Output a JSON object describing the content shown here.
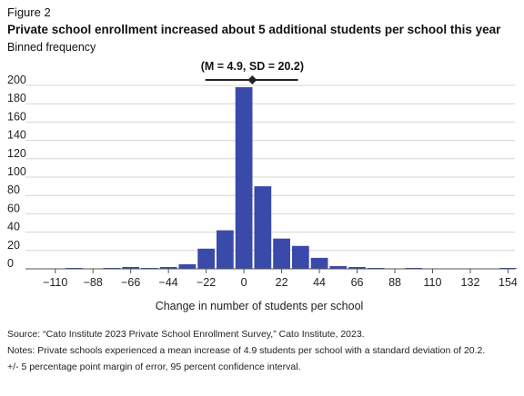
{
  "figure_label": "Figure 2",
  "title": "Private school enrollment increased about 5 additional students per school this year",
  "subtitle": "Binned frequency",
  "chart_data": {
    "type": "bar",
    "ylim": [
      0,
      200
    ],
    "yticks": [
      0,
      20,
      40,
      60,
      80,
      100,
      120,
      140,
      160,
      180,
      200
    ],
    "xlim": [
      -121,
      158
    ],
    "xticks": [
      -110,
      -88,
      -66,
      -44,
      -22,
      0,
      22,
      44,
      66,
      88,
      110,
      132,
      154
    ],
    "xtick_labels": [
      "−110",
      "−88",
      "−66",
      "−44",
      "−22",
      "0",
      "22",
      "44",
      "66",
      "88",
      "110",
      "132",
      "154"
    ],
    "bin_width": 11,
    "bins": [
      {
        "x": -99,
        "value": 1
      },
      {
        "x": -77,
        "value": 1
      },
      {
        "x": -66,
        "value": 2
      },
      {
        "x": -55,
        "value": 1
      },
      {
        "x": -44,
        "value": 2
      },
      {
        "x": -33,
        "value": 5
      },
      {
        "x": -22,
        "value": 22
      },
      {
        "x": -11,
        "value": 42
      },
      {
        "x": 0,
        "value": 198
      },
      {
        "x": 11,
        "value": 90
      },
      {
        "x": 22,
        "value": 33
      },
      {
        "x": 33,
        "value": 25
      },
      {
        "x": 44,
        "value": 12
      },
      {
        "x": 55,
        "value": 3
      },
      {
        "x": 66,
        "value": 2
      },
      {
        "x": 77,
        "value": 1
      },
      {
        "x": 99,
        "value": 1
      },
      {
        "x": 154,
        "value": 1
      }
    ],
    "xlabel": "Change in number of students per school",
    "ylabel": "",
    "grid": true,
    "annotation": {
      "label": "(M = 4.9, SD = 20.2)",
      "mean": 4.9,
      "interval": [
        -22.5,
        31.5
      ]
    },
    "colors": {
      "bar": "#3a4aaa",
      "grid": "#d4d4d4",
      "axis": "#555555",
      "marker": "#222222"
    }
  },
  "footer": {
    "source": "Source: “Cato Institute 2023 Private School Enrollment Survey,” Cato Institute, 2023.",
    "notes": "Notes: Private schools experienced a mean increase of 4.9 students per school with a standard deviation of 20.2.",
    "moe": "+/- 5 percentage point margin of error, 95 percent confidence interval."
  }
}
